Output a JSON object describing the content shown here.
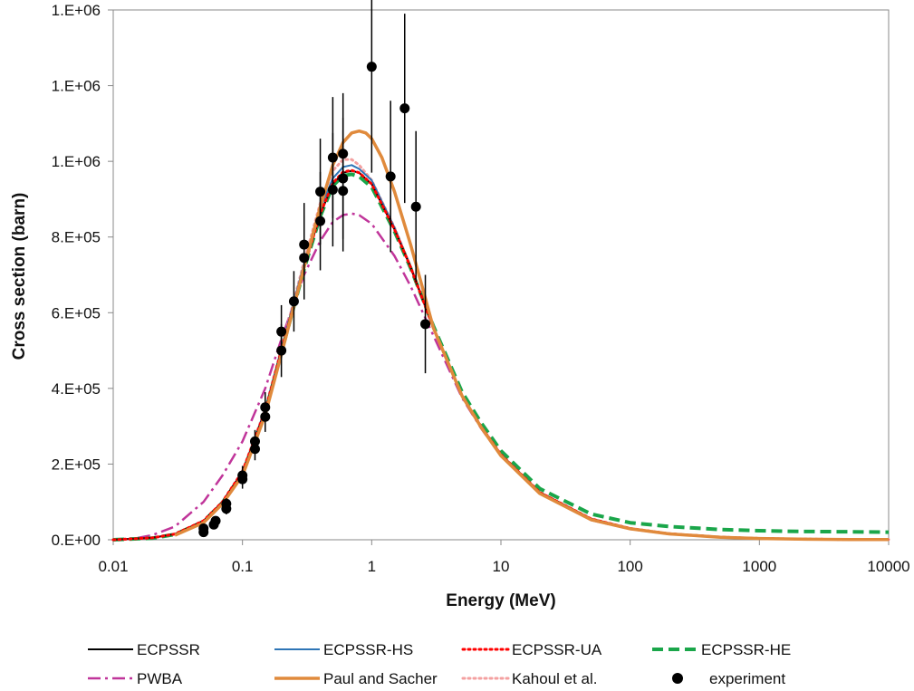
{
  "chart_data": {
    "type": "line",
    "title": "",
    "xlabel": "Energy (MeV)",
    "ylabel": "Cross section (barn)",
    "x_scale": "log",
    "xlim": [
      0.01,
      10000
    ],
    "ylim": [
      0,
      1400000
    ],
    "x_tick_labels": [
      "0.01",
      "0.1",
      "1",
      "10",
      "100",
      "1000",
      "10000"
    ],
    "x_tick_values": [
      0.01,
      0.1,
      1,
      10,
      100,
      1000,
      10000
    ],
    "y_tick_labels": [
      "0.E+00",
      "2.E+05",
      "4.E+05",
      "6.E+05",
      "8.E+05",
      "1.E+06",
      "1.E+06",
      "1.E+06"
    ],
    "y_tick_values": [
      0,
      200000,
      400000,
      600000,
      800000,
      1000000,
      1200000,
      1400000
    ],
    "grid": false,
    "legend_position": "bottom",
    "series": [
      {
        "name": "ECPSSR",
        "color": "#000000",
        "style": "solid",
        "x": [
          0.01,
          0.02,
          0.03,
          0.05,
          0.07,
          0.1,
          0.15,
          0.2,
          0.3,
          0.4,
          0.5,
          0.6,
          0.7,
          0.8,
          1,
          1.5,
          2,
          3,
          5,
          7,
          10,
          20,
          50,
          100,
          200,
          500,
          1000,
          2000,
          5000,
          10000
        ],
        "y": [
          0,
          5000,
          15000,
          50000,
          100000,
          180000,
          340000,
          500000,
          720000,
          860000,
          940000,
          970000,
          975000,
          970000,
          940000,
          820000,
          720000,
          560000,
          380000,
          300000,
          225000,
          125000,
          55000,
          30000,
          16000,
          7000,
          3500,
          1800,
          800,
          400
        ]
      },
      {
        "name": "ECPSSR-HS",
        "color": "#2e75b6",
        "style": "solid",
        "x": [
          0.01,
          0.02,
          0.03,
          0.05,
          0.07,
          0.1,
          0.15,
          0.2,
          0.3,
          0.4,
          0.5,
          0.6,
          0.7,
          0.8,
          1,
          1.5,
          2,
          3,
          5,
          7,
          10,
          20,
          50,
          100,
          200,
          500,
          1000,
          2000,
          5000,
          10000
        ],
        "y": [
          0,
          5000,
          15000,
          50000,
          100000,
          180000,
          345000,
          505000,
          730000,
          875000,
          955000,
          985000,
          990000,
          980000,
          950000,
          825000,
          722000,
          560000,
          380000,
          300000,
          225000,
          125000,
          55000,
          30000,
          16000,
          7000,
          3500,
          1800,
          800,
          400
        ]
      },
      {
        "name": "ECPSSR-UA",
        "color": "#ff0000",
        "style": "dotted",
        "x": [
          0.01,
          0.02,
          0.03,
          0.05,
          0.07,
          0.1,
          0.15,
          0.2,
          0.3,
          0.4,
          0.5,
          0.6,
          0.7,
          0.8,
          1,
          1.5,
          2,
          3,
          5,
          7,
          10,
          20,
          50,
          100,
          200,
          500,
          1000,
          2000,
          5000,
          10000
        ],
        "y": [
          0,
          5000,
          15000,
          50000,
          100000,
          180000,
          340000,
          500000,
          720000,
          862000,
          942000,
          972000,
          976000,
          970000,
          940000,
          820000,
          720000,
          560000,
          380000,
          300000,
          225000,
          125000,
          55000,
          30000,
          16000,
          7000,
          3500,
          1800,
          800,
          400
        ]
      },
      {
        "name": "ECPSSR-HE",
        "color": "#1aa64a",
        "style": "dashed",
        "x": [
          0.01,
          0.02,
          0.03,
          0.05,
          0.07,
          0.1,
          0.15,
          0.2,
          0.3,
          0.4,
          0.5,
          0.6,
          0.7,
          0.8,
          1,
          1.5,
          2,
          3,
          5,
          7,
          10,
          20,
          50,
          100,
          200,
          500,
          1000,
          2000,
          5000,
          10000
        ],
        "y": [
          0,
          4000,
          14000,
          48000,
          98000,
          175000,
          335000,
          495000,
          715000,
          855000,
          935000,
          962000,
          966000,
          960000,
          932000,
          815000,
          718000,
          565000,
          390000,
          310000,
          235000,
          135000,
          68000,
          45000,
          35000,
          27000,
          24000,
          22000,
          21000,
          20000
        ]
      },
      {
        "name": "PWBA",
        "color": "#c0359a",
        "style": "dashdot",
        "x": [
          0.01,
          0.015,
          0.02,
          0.03,
          0.05,
          0.07,
          0.1,
          0.15,
          0.2,
          0.3,
          0.4,
          0.5,
          0.6,
          0.7,
          0.8,
          1,
          1.5,
          2,
          3,
          5,
          7,
          10,
          20,
          50,
          100,
          200,
          500,
          1000,
          2000,
          5000,
          10000
        ],
        "y": [
          0,
          4000,
          12000,
          35000,
          100000,
          170000,
          260000,
          400000,
          530000,
          700000,
          790000,
          840000,
          858000,
          862000,
          858000,
          835000,
          750000,
          670000,
          540000,
          375000,
          295000,
          222000,
          122000,
          52000,
          28000,
          15000,
          6500,
          3200,
          1600,
          700,
          350
        ]
      },
      {
        "name": "Paul and Sacher",
        "color": "#e08a3c",
        "style": "solid-thick",
        "x": [
          0.03,
          0.05,
          0.07,
          0.1,
          0.15,
          0.2,
          0.3,
          0.4,
          0.5,
          0.6,
          0.7,
          0.8,
          0.9,
          1,
          1.2,
          1.5,
          2,
          2.5,
          3,
          5,
          7,
          10,
          20,
          50,
          100,
          200,
          500,
          1000,
          2000,
          5000,
          10000
        ],
        "y": [
          12000,
          45000,
          95000,
          170000,
          330000,
          490000,
          720000,
          880000,
          990000,
          1050000,
          1075000,
          1080000,
          1075000,
          1060000,
          1010000,
          920000,
          780000,
          660000,
          560000,
          380000,
          298000,
          222000,
          122000,
          53000,
          29000,
          15500,
          6800,
          3400,
          1700,
          750,
          380
        ]
      },
      {
        "name": "Kahoul et al.",
        "color": "#f4a0a0",
        "style": "dotted",
        "x": [
          0.01,
          0.02,
          0.03,
          0.05,
          0.07,
          0.1,
          0.15,
          0.2,
          0.3,
          0.4,
          0.5,
          0.6,
          0.7,
          0.8,
          1,
          1.5,
          2,
          3,
          5,
          7,
          10,
          20,
          50,
          100,
          200,
          500,
          1000,
          2000,
          5000,
          10000
        ],
        "y": [
          0,
          5000,
          15000,
          50000,
          100000,
          182000,
          345000,
          505000,
          735000,
          890000,
          975000,
          1005000,
          1005000,
          990000,
          950000,
          825000,
          722000,
          560000,
          380000,
          300000,
          225000,
          125000,
          55000,
          30000,
          16000,
          7000,
          3500,
          1800,
          800,
          400
        ]
      }
    ],
    "experiment": {
      "name": "experiment",
      "color": "#000000",
      "points": [
        {
          "x": 0.05,
          "y": 30000,
          "err": 10000
        },
        {
          "x": 0.05,
          "y": 20000,
          "err": 8000
        },
        {
          "x": 0.06,
          "y": 40000,
          "err": 10000
        },
        {
          "x": 0.062,
          "y": 50000,
          "err": 10000
        },
        {
          "x": 0.075,
          "y": 95000,
          "err": 15000
        },
        {
          "x": 0.075,
          "y": 82000,
          "err": 15000
        },
        {
          "x": 0.1,
          "y": 170000,
          "err": 25000
        },
        {
          "x": 0.1,
          "y": 160000,
          "err": 25000
        },
        {
          "x": 0.125,
          "y": 260000,
          "err": 30000
        },
        {
          "x": 0.125,
          "y": 240000,
          "err": 30000
        },
        {
          "x": 0.15,
          "y": 350000,
          "err": 40000
        },
        {
          "x": 0.15,
          "y": 325000,
          "err": 40000
        },
        {
          "x": 0.2,
          "y": 550000,
          "err": 70000
        },
        {
          "x": 0.2,
          "y": 500000,
          "err": 70000
        },
        {
          "x": 0.25,
          "y": 630000,
          "err": 80000
        },
        {
          "x": 0.3,
          "y": 780000,
          "err": 110000
        },
        {
          "x": 0.3,
          "y": 745000,
          "err": 110000
        },
        {
          "x": 0.4,
          "y": 920000,
          "err": 140000
        },
        {
          "x": 0.4,
          "y": 842000,
          "err": 130000
        },
        {
          "x": 0.5,
          "y": 1010000,
          "err": 160000
        },
        {
          "x": 0.5,
          "y": 925000,
          "err": 150000
        },
        {
          "x": 0.6,
          "y": 1020000,
          "err": 160000
        },
        {
          "x": 0.6,
          "y": 955000,
          "err": 160000
        },
        {
          "x": 0.6,
          "y": 922000,
          "err": 160000
        },
        {
          "x": 1,
          "y": 1250000,
          "err": 280000
        },
        {
          "x": 1.4,
          "y": 960000,
          "err": 200000
        },
        {
          "x": 1.8,
          "y": 1140000,
          "err": 250000
        },
        {
          "x": 2.2,
          "y": 880000,
          "err": 200000
        },
        {
          "x": 2.6,
          "y": 570000,
          "err": 130000
        }
      ]
    }
  }
}
